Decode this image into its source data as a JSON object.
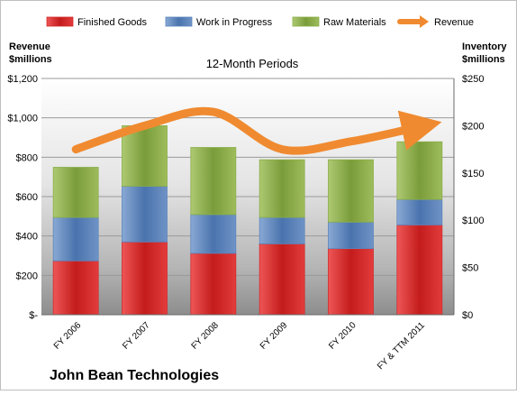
{
  "chart_data": {
    "type": "bar",
    "stacked": true,
    "title": "12-Month Periods",
    "company": "John Bean Technologies",
    "left_axis_label": [
      "Revenue",
      "$millions"
    ],
    "right_axis_label": [
      "Inventory",
      "$millions"
    ],
    "categories": [
      "FY 2006",
      "FY 2007",
      "FY 2008",
      "FY 2009",
      "FY 2010",
      "FY & TTM 2011"
    ],
    "series": [
      {
        "name": "Finished Goods",
        "axis": "right",
        "color": "#d42a2a",
        "values": [
          57,
          77,
          65,
          75,
          70,
          95
        ]
      },
      {
        "name": "Work in Progress",
        "axis": "right",
        "color": "#5b85bd",
        "values": [
          46,
          59,
          41,
          28,
          28,
          27
        ]
      },
      {
        "name": "Raw Materials",
        "axis": "right",
        "color": "#8aae47",
        "values": [
          53,
          64,
          71,
          61,
          66,
          61
        ]
      },
      {
        "name": "Revenue",
        "axis": "left",
        "type": "line",
        "color": "#f08a30",
        "values": [
          840,
          960,
          1030,
          840,
          880,
          955
        ]
      }
    ],
    "left_ylim": [
      0,
      1200
    ],
    "left_ticks": [
      {
        "value": 0,
        "label": "$-"
      },
      {
        "value": 200,
        "label": "$200"
      },
      {
        "value": 400,
        "label": "$400"
      },
      {
        "value": 600,
        "label": "$600"
      },
      {
        "value": 800,
        "label": "$800"
      },
      {
        "value": 1000,
        "label": "$1,000"
      },
      {
        "value": 1200,
        "label": "$1,200"
      }
    ],
    "right_ylim": [
      0,
      250
    ],
    "right_ticks": [
      {
        "value": 0,
        "label": "$0"
      },
      {
        "value": 50,
        "label": "$50"
      },
      {
        "value": 100,
        "label": "$100"
      },
      {
        "value": 150,
        "label": "$150"
      },
      {
        "value": 200,
        "label": "$200"
      },
      {
        "value": 250,
        "label": "$250"
      }
    ],
    "grid": true,
    "legend_position": "top"
  }
}
